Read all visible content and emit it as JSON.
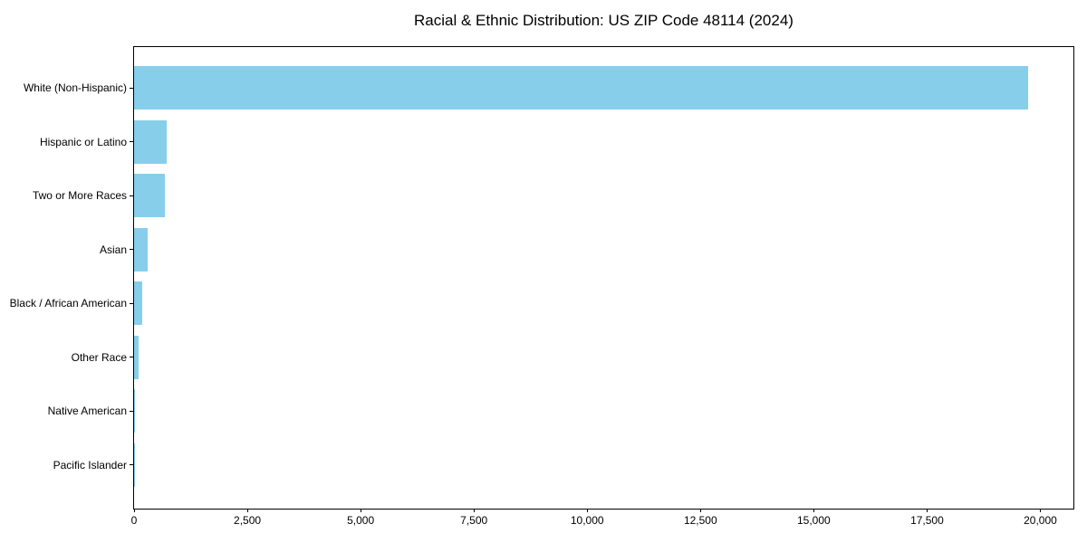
{
  "chart_data": {
    "type": "bar",
    "orientation": "horizontal",
    "title": "Racial & Ethnic Distribution: US ZIP Code 48114 (2024)",
    "categories": [
      "White (Non-Hispanic)",
      "Hispanic or Latino",
      "Two or More Races",
      "Asian",
      "Black / African American",
      "Other Race",
      "Native American",
      "Pacific Islander"
    ],
    "values": [
      19740,
      710,
      670,
      300,
      170,
      90,
      25,
      8
    ],
    "bar_color": "#87CEEB",
    "xlabel": "",
    "ylabel": "",
    "xlim": [
      0,
      20730
    ],
    "x_ticks": [
      0,
      2500,
      5000,
      7500,
      10000,
      12500,
      15000,
      17500,
      20000
    ],
    "x_tick_labels": [
      "0",
      "2,500",
      "5,000",
      "7,500",
      "10,000",
      "12,500",
      "15,000",
      "17,500",
      "20,000"
    ],
    "grid": false,
    "legend": null,
    "background_color": "#ffffff",
    "text_color": "#000000"
  }
}
